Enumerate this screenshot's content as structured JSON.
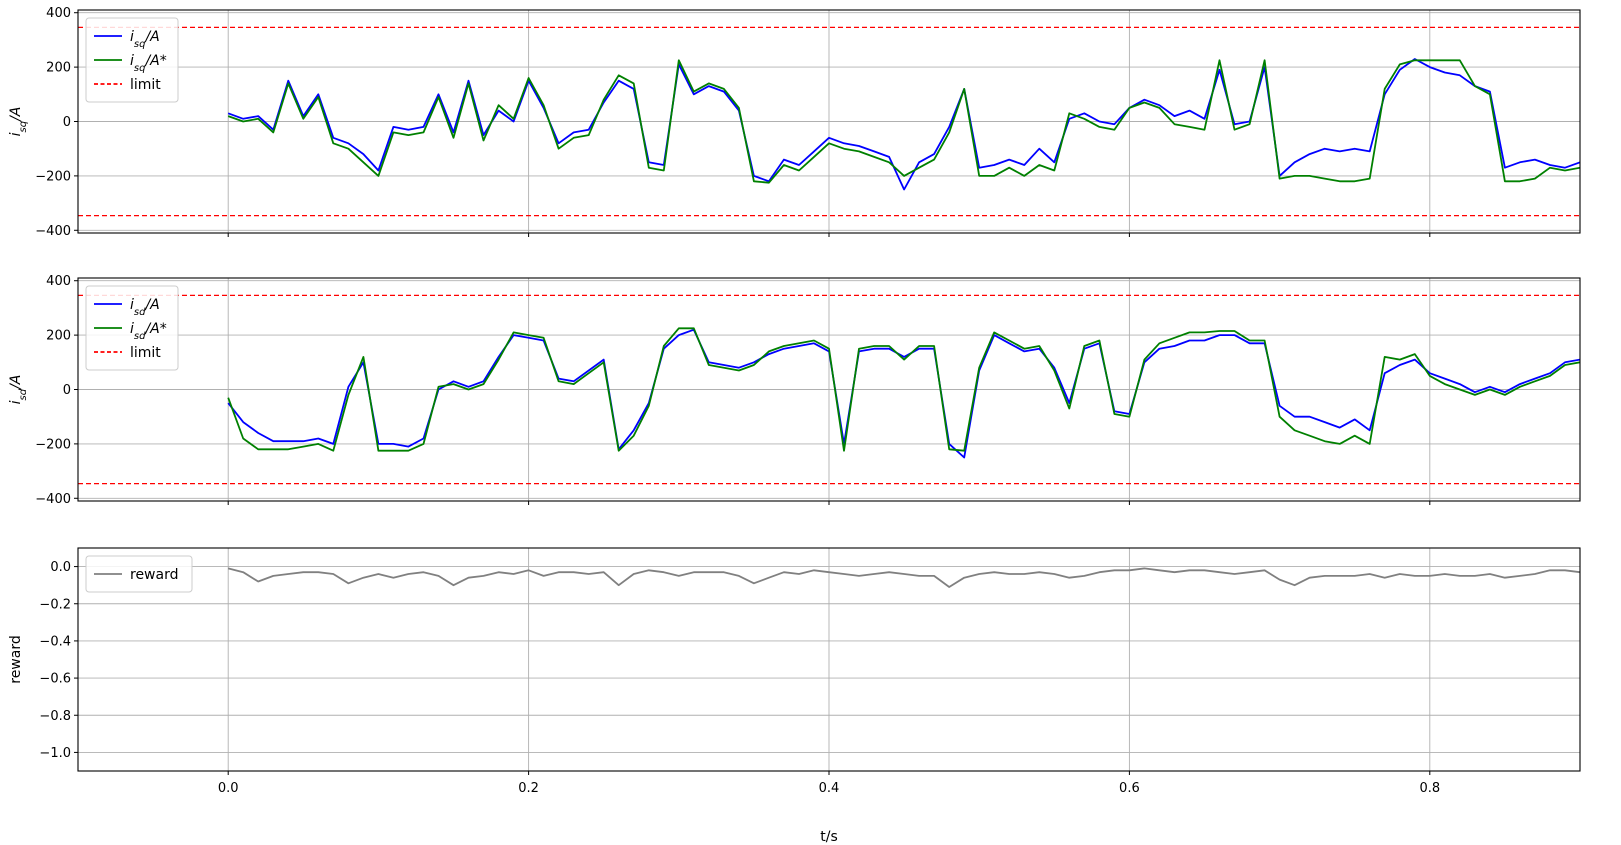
{
  "chart_data": [
    {
      "type": "line",
      "ylabel_main": "i",
      "ylabel_sub": "sq",
      "ylabel_rest": "/A",
      "xlim": [
        -0.1,
        0.9
      ],
      "ylim": [
        -410,
        410
      ],
      "yticks": [
        400,
        200,
        0,
        -200,
        -400
      ],
      "ytick_labels": [
        "400",
        "200",
        "0",
        "−200",
        "−400"
      ],
      "grid": true,
      "legend_position": "upper-left",
      "series": [
        {
          "name_main": "i",
          "name_sub": "sq",
          "name_rest": "/A",
          "color": "#0000ff",
          "style": "solid",
          "x": [
            0.0,
            0.01,
            0.02,
            0.03,
            0.04,
            0.05,
            0.06,
            0.07,
            0.08,
            0.09,
            0.1,
            0.11,
            0.12,
            0.13,
            0.14,
            0.15,
            0.16,
            0.17,
            0.18,
            0.19,
            0.2,
            0.21,
            0.22,
            0.23,
            0.24,
            0.25,
            0.26,
            0.27,
            0.28,
            0.29,
            0.3,
            0.31,
            0.32,
            0.33,
            0.34,
            0.35,
            0.36,
            0.37,
            0.38,
            0.39,
            0.4,
            0.41,
            0.42,
            0.43,
            0.44,
            0.45,
            0.46,
            0.47,
            0.48,
            0.49,
            0.5,
            0.51,
            0.52,
            0.53,
            0.54,
            0.55,
            0.56,
            0.57,
            0.58,
            0.59,
            0.6,
            0.61,
            0.62,
            0.63,
            0.64,
            0.65,
            0.66,
            0.67,
            0.68,
            0.69,
            0.7,
            0.71,
            0.72,
            0.73,
            0.74,
            0.75,
            0.76,
            0.77,
            0.78,
            0.79,
            0.8,
            0.81,
            0.82,
            0.83,
            0.84,
            0.85,
            0.86,
            0.87,
            0.88,
            0.89,
            0.9
          ],
          "y": [
            30,
            10,
            20,
            -30,
            150,
            20,
            100,
            -60,
            -80,
            -120,
            -180,
            -20,
            -30,
            -20,
            100,
            -40,
            150,
            -50,
            40,
            0,
            150,
            50,
            -80,
            -40,
            -30,
            70,
            150,
            120,
            -150,
            -160,
            210,
            100,
            130,
            110,
            40,
            -200,
            -220,
            -140,
            -160,
            -110,
            -60,
            -80,
            -90,
            -110,
            -130,
            -250,
            -150,
            -120,
            -20,
            120,
            -170,
            -160,
            -140,
            -160,
            -100,
            -150,
            10,
            30,
            0,
            -10,
            50,
            80,
            60,
            20,
            40,
            10,
            190,
            -10,
            0,
            200,
            -200,
            -150,
            -120,
            -100,
            -110,
            -100,
            -110,
            100,
            190,
            230,
            200,
            180,
            170,
            130,
            110,
            -170,
            -150,
            -140,
            -160,
            -170,
            -150
          ]
        },
        {
          "name_main": "i",
          "name_sub": "sq",
          "name_rest": "/A*",
          "color": "#008000",
          "style": "solid",
          "x": [
            0.0,
            0.01,
            0.02,
            0.03,
            0.04,
            0.05,
            0.06,
            0.07,
            0.08,
            0.09,
            0.1,
            0.11,
            0.12,
            0.13,
            0.14,
            0.15,
            0.16,
            0.17,
            0.18,
            0.19,
            0.2,
            0.21,
            0.22,
            0.23,
            0.24,
            0.25,
            0.26,
            0.27,
            0.28,
            0.29,
            0.3,
            0.31,
            0.32,
            0.33,
            0.34,
            0.35,
            0.36,
            0.37,
            0.38,
            0.39,
            0.4,
            0.41,
            0.42,
            0.43,
            0.44,
            0.45,
            0.46,
            0.47,
            0.48,
            0.49,
            0.5,
            0.51,
            0.52,
            0.53,
            0.54,
            0.55,
            0.56,
            0.57,
            0.58,
            0.59,
            0.6,
            0.61,
            0.62,
            0.63,
            0.64,
            0.65,
            0.66,
            0.67,
            0.68,
            0.69,
            0.7,
            0.71,
            0.72,
            0.73,
            0.74,
            0.75,
            0.76,
            0.77,
            0.78,
            0.79,
            0.8,
            0.81,
            0.82,
            0.83,
            0.84,
            0.85,
            0.86,
            0.87,
            0.88,
            0.89,
            0.9
          ],
          "y": [
            20,
            0,
            10,
            -40,
            140,
            10,
            90,
            -80,
            -100,
            -150,
            -200,
            -40,
            -50,
            -40,
            90,
            -60,
            140,
            -70,
            60,
            10,
            160,
            60,
            -100,
            -60,
            -50,
            80,
            170,
            140,
            -170,
            -180,
            225,
            110,
            140,
            120,
            50,
            -220,
            -225,
            -160,
            -180,
            -130,
            -80,
            -100,
            -110,
            -130,
            -150,
            -200,
            -170,
            -140,
            -40,
            120,
            -200,
            -200,
            -170,
            -200,
            -160,
            -180,
            30,
            10,
            -20,
            -30,
            50,
            70,
            50,
            -10,
            -20,
            -30,
            225,
            -30,
            -10,
            225,
            -210,
            -200,
            -200,
            -210,
            -220,
            -220,
            -210,
            120,
            210,
            225,
            225,
            225,
            225,
            130,
            100,
            -220,
            -220,
            -210,
            -170,
            -180,
            -170
          ]
        },
        {
          "name_main": "limit",
          "name_sub": "",
          "name_rest": "",
          "color": "#ff0000",
          "style": "dashed",
          "y_constant": [
            346,
            -346
          ]
        }
      ]
    },
    {
      "type": "line",
      "ylabel_main": "i",
      "ylabel_sub": "sd",
      "ylabel_rest": "/A",
      "xlim": [
        -0.1,
        0.9
      ],
      "ylim": [
        -410,
        410
      ],
      "yticks": [
        400,
        200,
        0,
        -200,
        -400
      ],
      "ytick_labels": [
        "400",
        "200",
        "0",
        "−200",
        "−400"
      ],
      "grid": true,
      "legend_position": "upper-left",
      "series": [
        {
          "name_main": "i",
          "name_sub": "sd",
          "name_rest": "/A",
          "color": "#0000ff",
          "style": "solid",
          "x": [
            0.0,
            0.01,
            0.02,
            0.03,
            0.04,
            0.05,
            0.06,
            0.07,
            0.08,
            0.09,
            0.1,
            0.11,
            0.12,
            0.13,
            0.14,
            0.15,
            0.16,
            0.17,
            0.18,
            0.19,
            0.2,
            0.21,
            0.22,
            0.23,
            0.24,
            0.25,
            0.26,
            0.27,
            0.28,
            0.29,
            0.3,
            0.31,
            0.32,
            0.33,
            0.34,
            0.35,
            0.36,
            0.37,
            0.38,
            0.39,
            0.4,
            0.41,
            0.42,
            0.43,
            0.44,
            0.45,
            0.46,
            0.47,
            0.48,
            0.49,
            0.5,
            0.51,
            0.52,
            0.53,
            0.54,
            0.55,
            0.56,
            0.57,
            0.58,
            0.59,
            0.6,
            0.61,
            0.62,
            0.63,
            0.64,
            0.65,
            0.66,
            0.67,
            0.68,
            0.69,
            0.7,
            0.71,
            0.72,
            0.73,
            0.74,
            0.75,
            0.76,
            0.77,
            0.78,
            0.79,
            0.8,
            0.81,
            0.82,
            0.83,
            0.84,
            0.85,
            0.86,
            0.87,
            0.88,
            0.89,
            0.9
          ],
          "y": [
            -50,
            -120,
            -160,
            -190,
            -190,
            -190,
            -180,
            -200,
            10,
            100,
            -200,
            -200,
            -210,
            -180,
            0,
            30,
            10,
            30,
            120,
            200,
            190,
            180,
            40,
            30,
            70,
            110,
            -220,
            -150,
            -50,
            150,
            200,
            220,
            100,
            90,
            80,
            100,
            130,
            150,
            160,
            170,
            140,
            -200,
            140,
            150,
            150,
            120,
            150,
            150,
            -200,
            -250,
            70,
            200,
            170,
            140,
            150,
            80,
            -50,
            150,
            170,
            -80,
            -90,
            100,
            150,
            160,
            180,
            180,
            200,
            200,
            170,
            170,
            -60,
            -100,
            -100,
            -120,
            -140,
            -110,
            -150,
            60,
            90,
            110,
            60,
            40,
            20,
            -10,
            10,
            -10,
            20,
            40,
            60,
            100,
            110
          ]
        },
        {
          "name_main": "i",
          "name_sub": "sd",
          "name_rest": "/A*",
          "color": "#008000",
          "style": "solid",
          "x": [
            0.0,
            0.01,
            0.02,
            0.03,
            0.04,
            0.05,
            0.06,
            0.07,
            0.08,
            0.09,
            0.1,
            0.11,
            0.12,
            0.13,
            0.14,
            0.15,
            0.16,
            0.17,
            0.18,
            0.19,
            0.2,
            0.21,
            0.22,
            0.23,
            0.24,
            0.25,
            0.26,
            0.27,
            0.28,
            0.29,
            0.3,
            0.31,
            0.32,
            0.33,
            0.34,
            0.35,
            0.36,
            0.37,
            0.38,
            0.39,
            0.4,
            0.41,
            0.42,
            0.43,
            0.44,
            0.45,
            0.46,
            0.47,
            0.48,
            0.49,
            0.5,
            0.51,
            0.52,
            0.53,
            0.54,
            0.55,
            0.56,
            0.57,
            0.58,
            0.59,
            0.6,
            0.61,
            0.62,
            0.63,
            0.64,
            0.65,
            0.66,
            0.67,
            0.68,
            0.69,
            0.7,
            0.71,
            0.72,
            0.73,
            0.74,
            0.75,
            0.76,
            0.77,
            0.78,
            0.79,
            0.8,
            0.81,
            0.82,
            0.83,
            0.84,
            0.85,
            0.86,
            0.87,
            0.88,
            0.89,
            0.9
          ],
          "y": [
            -30,
            -180,
            -220,
            -220,
            -220,
            -210,
            -200,
            -225,
            -20,
            120,
            -225,
            -225,
            -225,
            -200,
            10,
            20,
            0,
            20,
            110,
            210,
            200,
            190,
            30,
            20,
            60,
            100,
            -225,
            -170,
            -60,
            160,
            225,
            225,
            90,
            80,
            70,
            90,
            140,
            160,
            170,
            180,
            150,
            -225,
            150,
            160,
            160,
            110,
            160,
            160,
            -220,
            -225,
            80,
            210,
            180,
            150,
            160,
            70,
            -70,
            160,
            180,
            -90,
            -100,
            110,
            170,
            190,
            210,
            210,
            215,
            215,
            180,
            180,
            -100,
            -150,
            -170,
            -190,
            -200,
            -170,
            -200,
            120,
            110,
            130,
            50,
            20,
            0,
            -20,
            0,
            -20,
            10,
            30,
            50,
            90,
            100
          ]
        },
        {
          "name_main": "limit",
          "name_sub": "",
          "name_rest": "",
          "color": "#ff0000",
          "style": "dashed",
          "y_constant": [
            346,
            -346
          ]
        }
      ]
    },
    {
      "type": "line",
      "ylabel_main": "reward",
      "ylabel_sub": "",
      "ylabel_rest": "",
      "xlabel": "t/s",
      "xlim": [
        -0.1,
        0.9
      ],
      "ylim": [
        -1.1,
        0.1
      ],
      "yticks": [
        0.0,
        -0.2,
        -0.4,
        -0.6,
        -0.8,
        -1.0
      ],
      "ytick_labels": [
        "0.0",
        "−0.2",
        "−0.4",
        "−0.6",
        "−0.8",
        "−1.0"
      ],
      "xticks": [
        0.0,
        0.2,
        0.4,
        0.6,
        0.8
      ],
      "xtick_labels": [
        "0.0",
        "0.2",
        "0.4",
        "0.6",
        "0.8"
      ],
      "grid": true,
      "legend_position": "upper-left",
      "series": [
        {
          "name_main": "reward",
          "name_sub": "",
          "name_rest": "",
          "color": "#808080",
          "style": "solid",
          "x": [
            0.0,
            0.01,
            0.02,
            0.03,
            0.04,
            0.05,
            0.06,
            0.07,
            0.08,
            0.09,
            0.1,
            0.11,
            0.12,
            0.13,
            0.14,
            0.15,
            0.16,
            0.17,
            0.18,
            0.19,
            0.2,
            0.21,
            0.22,
            0.23,
            0.24,
            0.25,
            0.26,
            0.27,
            0.28,
            0.29,
            0.3,
            0.31,
            0.32,
            0.33,
            0.34,
            0.35,
            0.36,
            0.37,
            0.38,
            0.39,
            0.4,
            0.41,
            0.42,
            0.43,
            0.44,
            0.45,
            0.46,
            0.47,
            0.48,
            0.49,
            0.5,
            0.51,
            0.52,
            0.53,
            0.54,
            0.55,
            0.56,
            0.57,
            0.58,
            0.59,
            0.6,
            0.61,
            0.62,
            0.63,
            0.64,
            0.65,
            0.66,
            0.67,
            0.68,
            0.69,
            0.7,
            0.71,
            0.72,
            0.73,
            0.74,
            0.75,
            0.76,
            0.77,
            0.78,
            0.79,
            0.8,
            0.81,
            0.82,
            0.83,
            0.84,
            0.85,
            0.86,
            0.87,
            0.88,
            0.89,
            0.9
          ],
          "y": [
            -0.01,
            -0.03,
            -0.08,
            -0.05,
            -0.04,
            -0.03,
            -0.03,
            -0.04,
            -0.09,
            -0.06,
            -0.04,
            -0.06,
            -0.04,
            -0.03,
            -0.05,
            -0.1,
            -0.06,
            -0.05,
            -0.03,
            -0.04,
            -0.02,
            -0.05,
            -0.03,
            -0.03,
            -0.04,
            -0.03,
            -0.1,
            -0.04,
            -0.02,
            -0.03,
            -0.05,
            -0.03,
            -0.03,
            -0.03,
            -0.05,
            -0.09,
            -0.06,
            -0.03,
            -0.04,
            -0.02,
            -0.03,
            -0.04,
            -0.05,
            -0.04,
            -0.03,
            -0.04,
            -0.05,
            -0.05,
            -0.11,
            -0.06,
            -0.04,
            -0.03,
            -0.04,
            -0.04,
            -0.03,
            -0.04,
            -0.06,
            -0.05,
            -0.03,
            -0.02,
            -0.02,
            -0.01,
            -0.02,
            -0.03,
            -0.02,
            -0.02,
            -0.03,
            -0.04,
            -0.03,
            -0.02,
            -0.07,
            -0.1,
            -0.06,
            -0.05,
            -0.05,
            -0.05,
            -0.04,
            -0.06,
            -0.04,
            -0.05,
            -0.05,
            -0.04,
            -0.05,
            -0.05,
            -0.04,
            -0.06,
            -0.05,
            -0.04,
            -0.02,
            -0.02,
            -0.03
          ]
        }
      ]
    }
  ]
}
